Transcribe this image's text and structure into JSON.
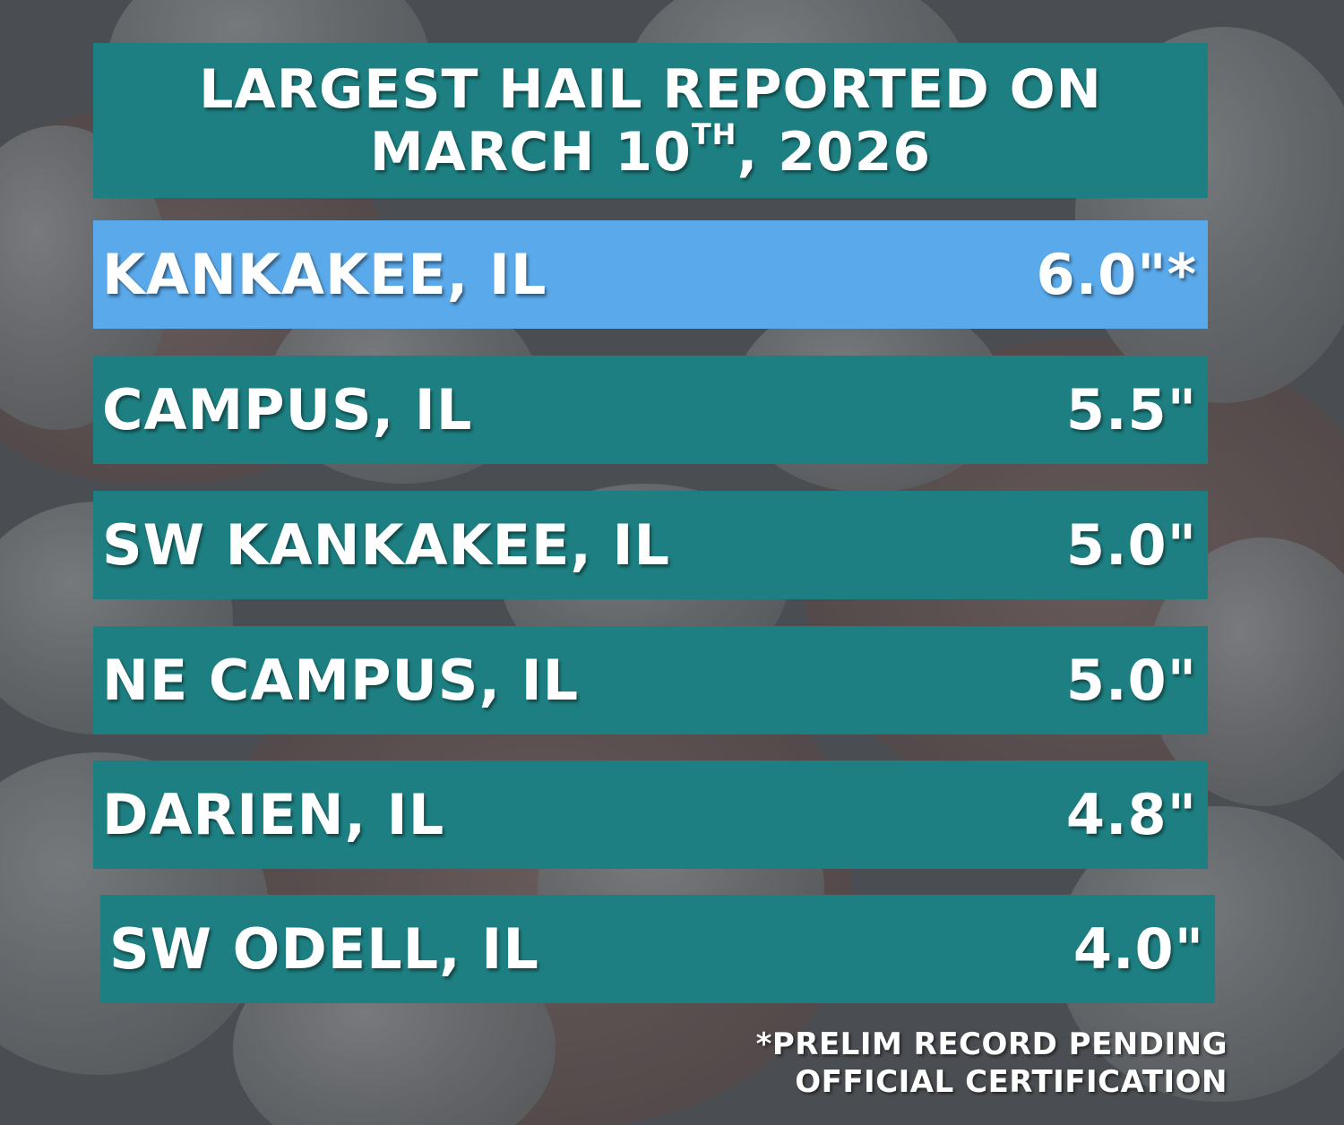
{
  "title": {
    "line1": "LARGEST HAIL REPORTED ON",
    "line2_prefix": "MARCH 10",
    "line2_sup": "TH",
    "line2_suffix": ", 2026"
  },
  "reports": [
    {
      "location": "KANKAKEE, IL",
      "size": "6.0\"*"
    },
    {
      "location": "CAMPUS, IL",
      "size": "5.5\""
    },
    {
      "location": "SW KANKAKEE, IL",
      "size": "5.0\""
    },
    {
      "location": "NE CAMPUS, IL",
      "size": "5.0\""
    },
    {
      "location": "DARIEN, IL",
      "size": "4.8\""
    },
    {
      "location": "SW ODELL, IL",
      "size": "4.0\""
    }
  ],
  "footnote": {
    "line1": "*PRELIM RECORD PENDING",
    "line2": "OFFICIAL CERTIFICATION"
  },
  "colors": {
    "panel": "#1d7f81",
    "highlight": "#5aa9ea",
    "text": "#ffffff"
  },
  "background": {
    "description_icon": "hailstones-photo"
  }
}
